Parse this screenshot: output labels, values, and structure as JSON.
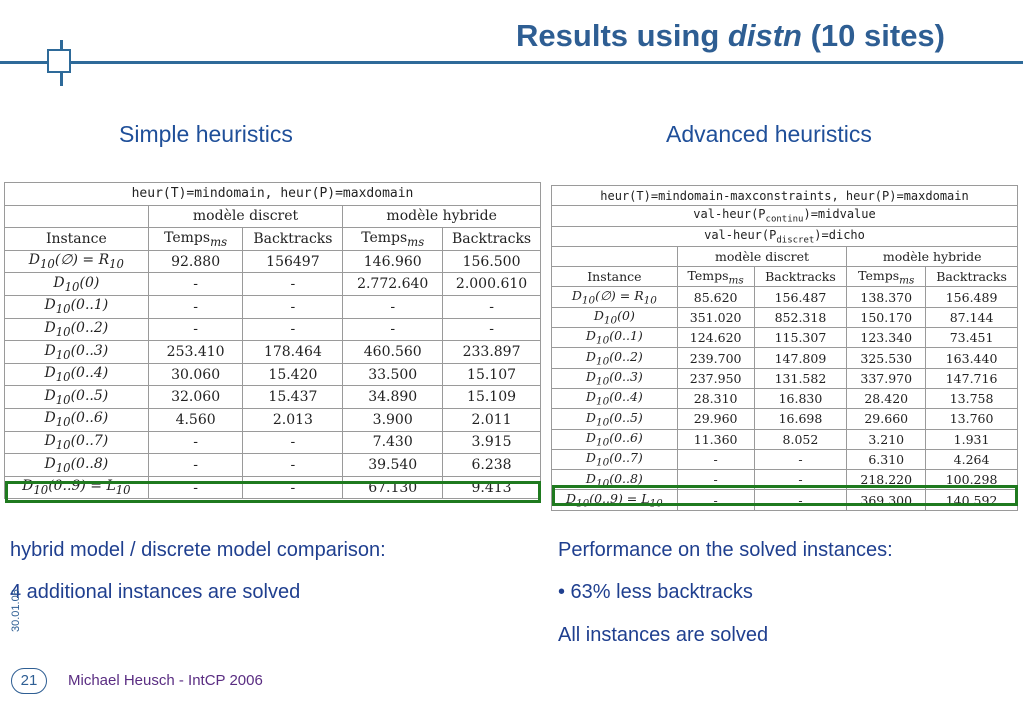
{
  "title": {
    "prefix": "Results using ",
    "emph": "distn",
    "suffix": " (10 sites)"
  },
  "left_heading": "Simple heuristics",
  "right_heading": "Advanced heuristics",
  "table1": {
    "header": "heur(T)=mindomain, heur(P)=maxdomain",
    "group_discret": "modèle discret",
    "group_hybride": "modèle hybride",
    "col_instance": "Instance",
    "col_temps": "Temps",
    "col_temps_sub": "ms",
    "col_backtracks": "Backtracks",
    "rows": [
      [
        "D10(∅) = R10",
        "92.880",
        "156497",
        "146.960",
        "156.500"
      ],
      [
        "D10(0)",
        "-",
        "-",
        "2.772.640",
        "2.000.610"
      ],
      [
        "D10(0..1)",
        "-",
        "-",
        "-",
        "-"
      ],
      [
        "D10(0..2)",
        "-",
        "-",
        "-",
        "-"
      ],
      [
        "D10(0..3)",
        "253.410",
        "178.464",
        "460.560",
        "233.897"
      ],
      [
        "D10(0..4)",
        "30.060",
        "15.420",
        "33.500",
        "15.107"
      ],
      [
        "D10(0..5)",
        "32.060",
        "15.437",
        "34.890",
        "15.109"
      ],
      [
        "D10(0..6)",
        "4.560",
        "2.013",
        "3.900",
        "2.011"
      ],
      [
        "D10(0..7)",
        "-",
        "-",
        "7.430",
        "3.915"
      ],
      [
        "D10(0..8)",
        "-",
        "-",
        "39.540",
        "6.238"
      ],
      [
        "D10(0..9) = L10",
        "-",
        "-",
        "67.130",
        "9.413"
      ]
    ]
  },
  "table2": {
    "header1": "heur(T)=mindomain-maxconstraints, heur(P)=maxdomain",
    "header2_a": "val-heur(P",
    "header2_sub": "continu",
    "header2_b": ")=midvalue",
    "header3_a": "val-heur(P",
    "header3_sub": "discret",
    "header3_b": ")=dicho",
    "group_discret": "modèle discret",
    "group_hybride": "modèle hybride",
    "col_instance": "Instance",
    "col_temps": "Temps",
    "col_temps_sub": "ms",
    "col_backtracks": "Backtracks",
    "rows": [
      [
        "D10(∅) = R10",
        "85.620",
        "156.487",
        "138.370",
        "156.489"
      ],
      [
        "D10(0)",
        "351.020",
        "852.318",
        "150.170",
        "87.144"
      ],
      [
        "D10(0..1)",
        "124.620",
        "115.307",
        "123.340",
        "73.451"
      ],
      [
        "D10(0..2)",
        "239.700",
        "147.809",
        "325.530",
        "163.440"
      ],
      [
        "D10(0..3)",
        "237.950",
        "131.582",
        "337.970",
        "147.716"
      ],
      [
        "D10(0..4)",
        "28.310",
        "16.830",
        "28.420",
        "13.758"
      ],
      [
        "D10(0..5)",
        "29.960",
        "16.698",
        "29.660",
        "13.760"
      ],
      [
        "D10(0..6)",
        "11.360",
        "8.052",
        "3.210",
        "1.931"
      ],
      [
        "D10(0..7)",
        "-",
        "-",
        "6.310",
        "4.264"
      ],
      [
        "D10(0..8)",
        "-",
        "-",
        "218.220",
        "100.298"
      ],
      [
        "D10(0..9) = L10",
        "-",
        "-",
        "369.300",
        "140.592"
      ]
    ]
  },
  "left_text": {
    "line1": "hybrid model / discrete model comparison:",
    "line2": "4 additional instances are solved"
  },
  "right_text": {
    "line1": "Performance on the solved instances:",
    "line2": "• 63% less backtracks",
    "line3": "All instances are solved"
  },
  "date": "30.01.06",
  "page_number": "21",
  "footer": "Michael Heusch - IntCP 2006",
  "colors": {
    "title": "#2e5e93",
    "rule": "#2e6a99",
    "text": "#1f3f8f",
    "highlight": "#1f7a1f",
    "footer": "#5a2d82"
  }
}
